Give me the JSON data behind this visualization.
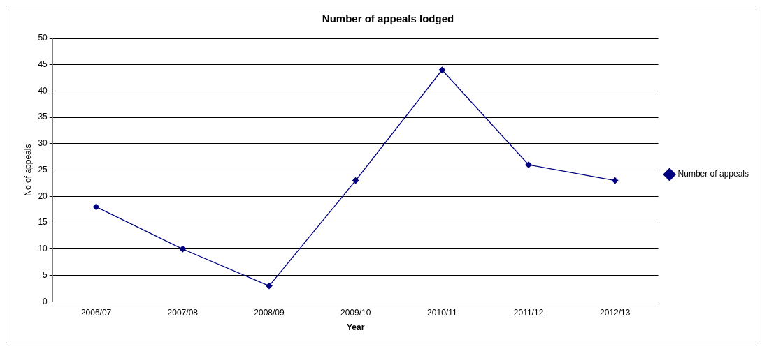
{
  "chart_data": {
    "type": "line",
    "title": "Number of appeals lodged",
    "xlabel": "Year",
    "ylabel": "No of appeals",
    "categories": [
      "2006/07",
      "2007/08",
      "2008/09",
      "2009/10",
      "2010/11",
      "2011/12",
      "2012/13"
    ],
    "series": [
      {
        "name": "Number of appeals",
        "color": "#000080",
        "values": [
          18,
          10,
          3,
          23,
          44,
          26,
          23
        ]
      }
    ],
    "ylim": [
      0,
      50
    ],
    "yticks": [
      0,
      5,
      10,
      15,
      20,
      25,
      30,
      35,
      40,
      45,
      50
    ],
    "grid": "y",
    "legend": "right",
    "marker": "diamond",
    "line_style": "solid"
  }
}
